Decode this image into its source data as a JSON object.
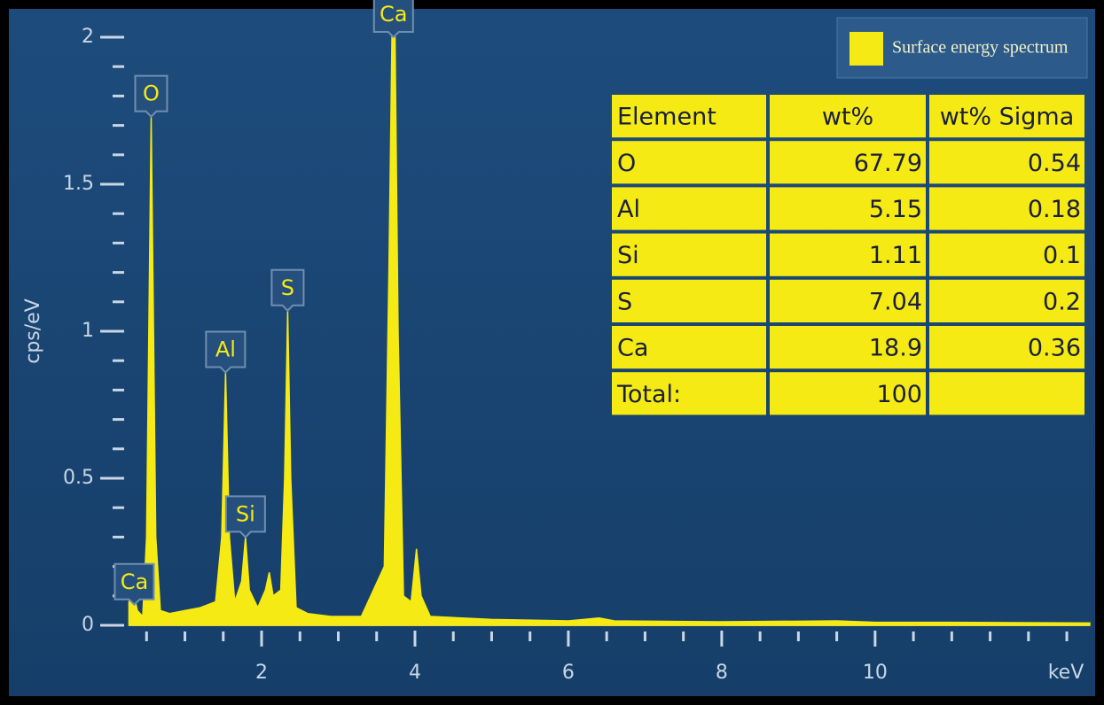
{
  "chart_data": {
    "type": "area",
    "xlabel": "keV",
    "ylabel": "cps/eV",
    "xlim": [
      0.27,
      12.8
    ],
    "ylim": [
      0,
      2
    ],
    "xticks": [
      2,
      4,
      6,
      8,
      10
    ],
    "yticks": [
      0,
      0.5,
      1,
      1.5,
      2
    ],
    "xminorticks": [
      0.5,
      1,
      1.5,
      2.5,
      3,
      3.5,
      4.5,
      5,
      5.5,
      6.5,
      7,
      7.5,
      8.5,
      9,
      9.5,
      10.5,
      11,
      11.5,
      12,
      12.5
    ],
    "yminorticks": [
      0.1,
      0.2,
      0.3,
      0.4,
      0.6,
      0.7,
      0.8,
      0.9,
      1.1,
      1.2,
      1.3,
      1.4,
      1.6,
      1.7,
      1.8,
      1.9
    ],
    "series": [
      {
        "name": "Surface energy spectrum",
        "color": "#f5ea14",
        "x": [
          0.27,
          0.32,
          0.38,
          0.45,
          0.5,
          0.56,
          0.62,
          0.68,
          0.8,
          1.0,
          1.2,
          1.4,
          1.48,
          1.53,
          1.58,
          1.65,
          1.74,
          1.79,
          1.84,
          1.95,
          2.05,
          2.1,
          2.15,
          2.25,
          2.3,
          2.34,
          2.38,
          2.45,
          2.6,
          2.9,
          3.3,
          3.6,
          3.66,
          3.7,
          3.74,
          3.78,
          3.85,
          3.95,
          4.02,
          4.08,
          4.2,
          5.0,
          6.0,
          6.4,
          6.6,
          8.0,
          9.5,
          10.0,
          11.0,
          12.8
        ],
        "values": [
          0.08,
          0.12,
          0.05,
          0.03,
          0.3,
          1.73,
          0.3,
          0.05,
          0.04,
          0.05,
          0.06,
          0.08,
          0.3,
          0.86,
          0.3,
          0.08,
          0.15,
          0.3,
          0.12,
          0.06,
          0.12,
          0.18,
          0.1,
          0.12,
          0.5,
          1.07,
          0.5,
          0.06,
          0.04,
          0.03,
          0.03,
          0.2,
          1.2,
          2.0,
          2.0,
          1.0,
          0.1,
          0.08,
          0.26,
          0.1,
          0.03,
          0.02,
          0.015,
          0.025,
          0.015,
          0.012,
          0.015,
          0.01,
          0.01,
          0.008
        ]
      }
    ],
    "annotations": [
      {
        "text": "Ca",
        "x": 0.34,
        "y": 0.07
      },
      {
        "text": "O",
        "x": 0.56,
        "y": 1.73
      },
      {
        "text": "Al",
        "x": 1.53,
        "y": 0.86
      },
      {
        "text": "Si",
        "x": 1.79,
        "y": 0.3
      },
      {
        "text": "S",
        "x": 2.34,
        "y": 1.07
      },
      {
        "text": "Ca",
        "x": 3.72,
        "y": 2.0
      }
    ],
    "table": {
      "columns": [
        "Element",
        "wt%",
        "wt% Sigma"
      ],
      "rows": [
        [
          "O",
          67.79,
          0.54
        ],
        [
          "Al",
          5.15,
          0.18
        ],
        [
          "Si",
          1.11,
          0.1
        ],
        [
          "S",
          7.04,
          0.2
        ],
        [
          "Ca",
          18.9,
          0.36
        ],
        [
          "Total:",
          100,
          null
        ]
      ]
    }
  }
}
